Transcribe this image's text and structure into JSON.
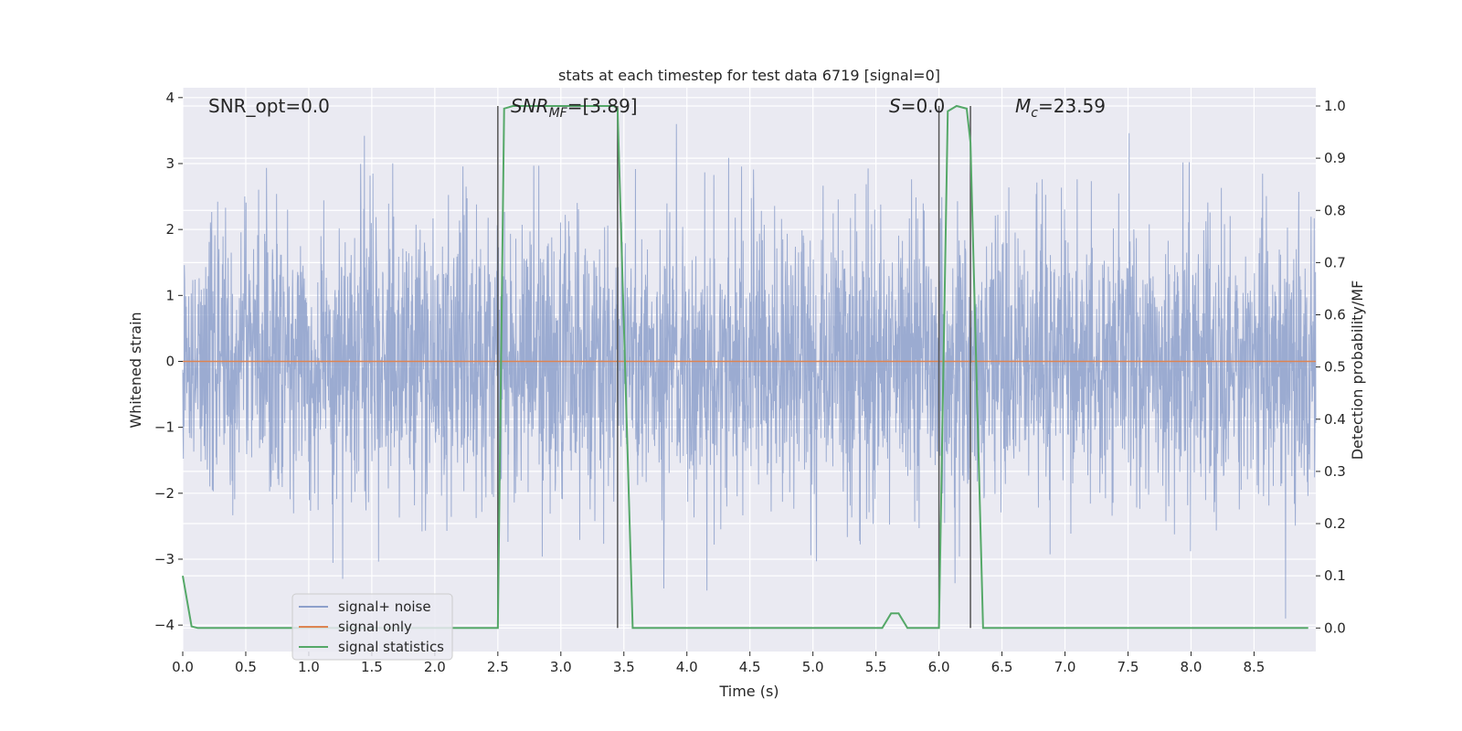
{
  "chart_data": {
    "type": "line",
    "title": "stats at each timestep for test data 6719 [signal=0]",
    "xlabel": "Time (s)",
    "ylabel_left": "Whitened strain",
    "ylabel_right": "Detection probability/MF",
    "xlim": [
      0.0,
      8.99
    ],
    "ylim_left": [
      -4.4,
      4.15
    ],
    "ylim_right": [
      -0.045,
      1.035
    ],
    "x_ticks": [
      "0.0",
      "0.5",
      "1.0",
      "1.5",
      "2.0",
      "2.5",
      "3.0",
      "3.5",
      "4.0",
      "4.5",
      "5.0",
      "5.5",
      "6.0",
      "6.5",
      "7.0",
      "7.5",
      "8.0",
      "8.5"
    ],
    "y_ticks_left": [
      "−4",
      "−3",
      "−2",
      "−1",
      "0",
      "1",
      "2",
      "3",
      "4"
    ],
    "y_ticks_right": [
      "0.0",
      "0.1",
      "0.2",
      "0.3",
      "0.4",
      "0.5",
      "0.6",
      "0.7",
      "0.8",
      "0.9",
      "1.0"
    ],
    "grid": true,
    "legend_position": "lower-left",
    "annotations": {
      "snr_opt": "SNR_opt=0.0",
      "snr_mf_base": "SNR",
      "snr_mf_sub": "MF",
      "snr_mf_rest": "=[3.89]",
      "s_base": "S",
      "s_rest": "=0.0",
      "mc_base": "M",
      "mc_sub": "c",
      "mc_rest": "=23.59"
    },
    "series": [
      {
        "name": "signal+ noise",
        "color": "#8da0cb",
        "description_values": "white noise, amplitude mostly within ±2.5, spikes to ±3.6"
      },
      {
        "name": "signal only",
        "color": "#dd8452",
        "x": [
          0.0,
          8.99
        ],
        "y": [
          0.0,
          0.0
        ]
      },
      {
        "name": "signal statistics",
        "color": "#55a868",
        "axis": "right",
        "x": [
          0.0,
          0.07,
          0.12,
          2.5,
          2.55,
          2.62,
          3.42,
          3.45,
          3.57,
          5.55,
          5.62,
          5.68,
          5.75,
          6.0,
          6.07,
          6.14,
          6.22,
          6.25,
          6.35,
          8.93
        ],
        "y": [
          0.1,
          0.003,
          0.0,
          0.0,
          0.995,
          1.0,
          1.0,
          0.995,
          0.0,
          0.0,
          0.028,
          0.028,
          0.0,
          0.0,
          0.99,
          1.0,
          0.995,
          0.93,
          0.0,
          0.0
        ]
      }
    ],
    "vertical_markers_x": [
      2.5,
      3.45,
      6.0,
      6.25
    ],
    "noise_seed": 6719
  },
  "colors": {
    "plot_background": "#eaeaf2",
    "grid": "#ffffff",
    "marker_line": "#555555"
  }
}
